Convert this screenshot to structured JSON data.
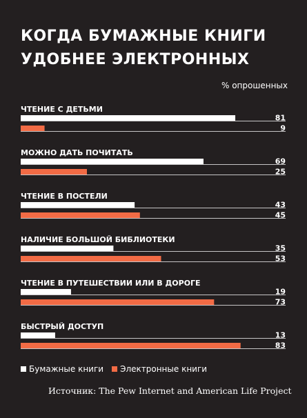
{
  "chart_data": {
    "type": "bar",
    "title": "Когда бумажные книги удобнее электронных",
    "unit_label": "% опрошенных",
    "categories": [
      "ЧТЕНИЕ С ДЕТЬМИ",
      "МОЖНО ДАТЬ ПОЧИТАТЬ",
      "ЧТЕНИЕ В ПОСТЕЛИ",
      "НАЛИЧИЕ БОЛЬШОЙ БИБЛИОТЕКИ",
      "ЧТЕНИЕ В ПУТЕШЕСТВИИ ИЛИ В ДОРОГЕ",
      "БЫСТРЫЙ ДОСТУП"
    ],
    "series": [
      {
        "name": "Бумажные книги",
        "values": [
          81,
          69,
          43,
          35,
          19,
          13
        ],
        "color": "#ffffff"
      },
      {
        "name": "Электронные книги",
        "values": [
          9,
          25,
          45,
          53,
          73,
          83
        ],
        "color": "#f26b45"
      }
    ],
    "xlim": [
      0,
      100
    ],
    "legend": "bottom-left"
  },
  "source": "Источник: The Pew Internet and American Life Project"
}
